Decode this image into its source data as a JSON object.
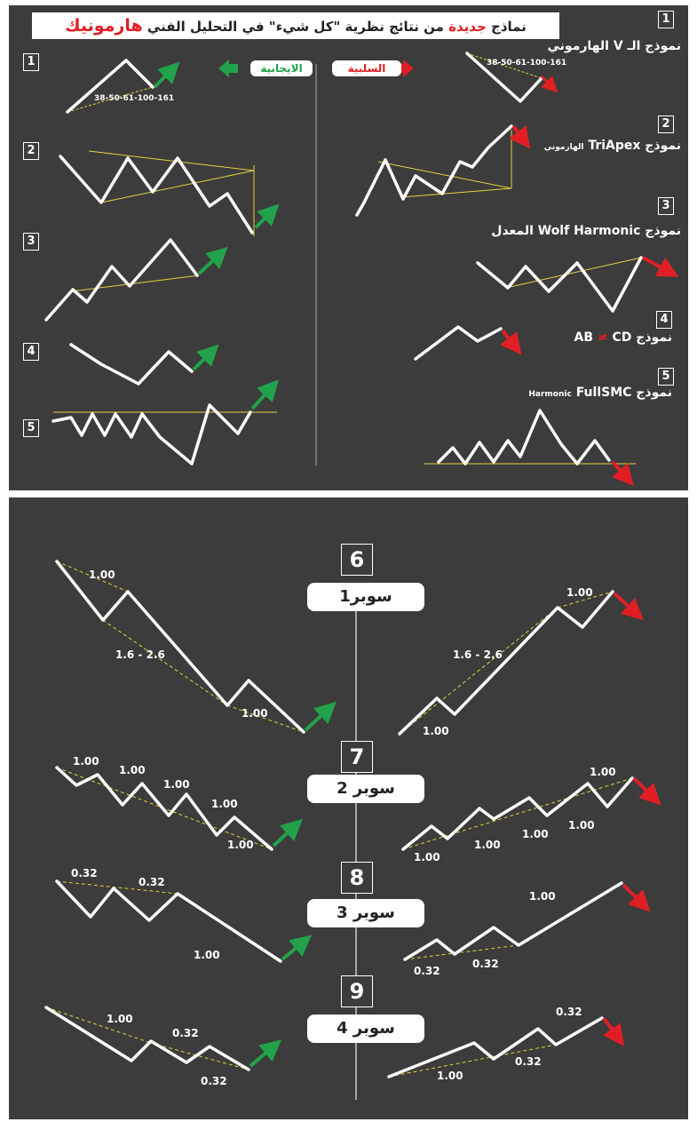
{
  "title": {
    "part1": "نماذج ",
    "highlight": "جديدة",
    "part2": " من نتائج نظرية \"كل شيء\" في التحليل الفني ",
    "brand": "هارمونيك"
  },
  "legend": {
    "negative": "السلبية",
    "positive": "الايجابية"
  },
  "top_numbers": {
    "r1": "1",
    "r2": "2",
    "r3": "3",
    "r4": "4",
    "r5": "5",
    "l1": "1",
    "l2": "2",
    "l3": "3",
    "l4": "4",
    "l5": "5"
  },
  "patterns": {
    "v": "نموذج الـ V الهارموني",
    "triapex_main": "نموذج TriApex",
    "triapex_small": "الهارموني",
    "wolf": "نموذج  Wolf Harmonic  المعدل",
    "abcd_left": "AB ",
    "abcd_neq": "≠",
    "abcd_right": " CD نموذج",
    "fullsmc_main": "نموذج ",
    "fullsmc_small": "Harmonic",
    "fullsmc_name": "FullSMC"
  },
  "fib_sequence": "38-50-61-100-161",
  "bottom_numbers": {
    "n6": "6",
    "n7": "7",
    "n8": "8",
    "n9": "9"
  },
  "supers": {
    "s1": "سوبر1",
    "s2": "سوبر 2",
    "s3": "سوبر 3",
    "s4": "سوبر 4"
  },
  "ratios": {
    "one": "1.00",
    "range": "1.6 - 2.6",
    "p32": "0.32"
  },
  "colors": {
    "panel": "#3c3c3c",
    "positive": "#22a24a",
    "negative": "#e01f25",
    "guide": "#e6d23a"
  }
}
